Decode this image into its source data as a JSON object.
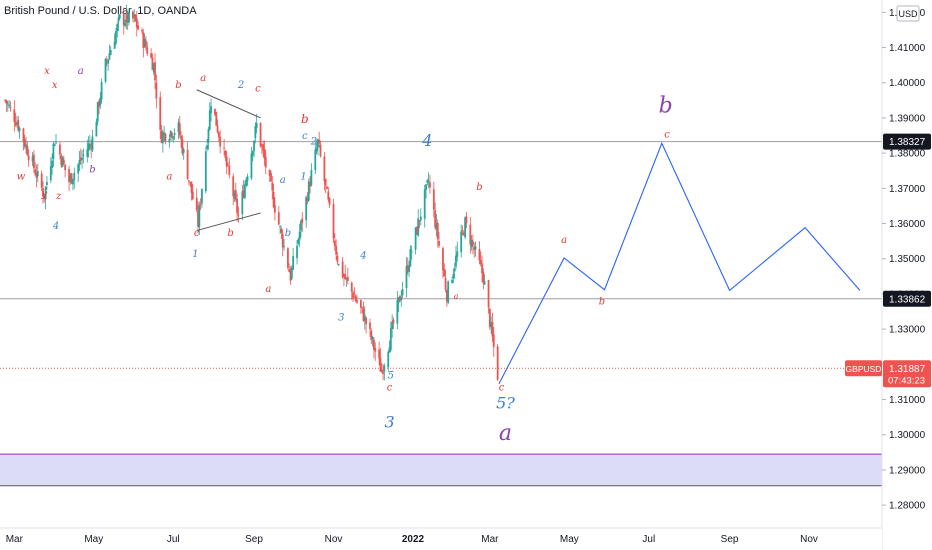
{
  "header": {
    "title": "British Pound / U.S. Dollar, 1D, OANDA",
    "currency": "USD"
  },
  "price_axis": {
    "labels": [
      "1.42000",
      "1.41000",
      "1.40000",
      "1.39000",
      "1.38000",
      "1.37000",
      "1.36000",
      "1.35000",
      "1.34000",
      "1.33000",
      "1.32000",
      "1.31000",
      "1.30000",
      "1.29000",
      "1.28000"
    ]
  },
  "badges": {
    "level1": "1.38327",
    "level2": "1.33862",
    "ticker": "GBPUSD",
    "price": "1.31887",
    "countdown": "07:43:23"
  },
  "time_axis": {
    "labels": [
      "Mar",
      "May",
      "Jul",
      "Sep",
      "Nov",
      "2022",
      "Mar",
      "May",
      "Jul",
      "Sep",
      "Nov"
    ]
  },
  "colors": {
    "up": "#26a69a",
    "down": "#ef5350",
    "red_label": "#e53935",
    "blue_label": "#3d7fcf",
    "purple_label": "#8e44ad",
    "projection": "#2962ff",
    "zone_fill": "#dcdcf6",
    "zone_border": "#9c27b0",
    "hline": "#9e9e9e",
    "badge_bg": "#131722",
    "price_badge_bg": "#ef5350"
  },
  "chart_data": {
    "type": "candlestick",
    "title": "British Pound / U.S. Dollar, 1D, OANDA",
    "ylim": [
      1.2735,
      1.4235
    ],
    "series": [
      {
        "name": "GBPUSD",
        "close_path": [
          [
            "2021-02-22",
            1.395
          ],
          [
            "2021-03-03",
            1.389
          ],
          [
            "2021-03-15",
            1.377
          ],
          [
            "2021-03-24",
            1.368
          ],
          [
            "2021-04-01",
            1.384
          ],
          [
            "2021-04-12",
            1.372
          ],
          [
            "2021-04-30",
            1.384
          ],
          [
            "2021-05-10",
            1.405
          ],
          [
            "2021-05-21",
            1.418
          ],
          [
            "2021-06-01",
            1.418
          ],
          [
            "2021-06-16",
            1.405
          ],
          [
            "2021-06-21",
            1.385
          ],
          [
            "2021-07-05",
            1.387
          ],
          [
            "2021-07-20",
            1.36
          ],
          [
            "2021-07-30",
            1.395
          ],
          [
            "2021-08-20",
            1.362
          ],
          [
            "2021-09-03",
            1.388
          ],
          [
            "2021-09-29",
            1.345
          ],
          [
            "2021-10-20",
            1.383
          ],
          [
            "2021-11-05",
            1.348
          ],
          [
            "2021-11-24",
            1.334
          ],
          [
            "2021-12-08",
            1.318
          ],
          [
            "2022-01-13",
            1.372
          ],
          [
            "2022-01-27",
            1.34
          ],
          [
            "2022-02-10",
            1.36
          ],
          [
            "2022-02-24",
            1.345
          ],
          [
            "2022-03-07",
            1.317
          ]
        ]
      },
      {
        "name": "projection",
        "points": [
          [
            "2022-03-08",
            1.3145
          ],
          [
            "2022-04-27",
            1.3502
          ],
          [
            "2022-05-28",
            1.3412
          ],
          [
            "2022-07-11",
            1.3828
          ],
          [
            "2022-09-01",
            1.341
          ],
          [
            "2022-10-29",
            1.3588
          ],
          [
            "2022-12-10",
            1.341
          ]
        ]
      }
    ],
    "horizontal_lines": [
      1.38327,
      1.33862
    ],
    "current_price": 1.31887,
    "zone": [
      1.2855,
      1.2945
    ],
    "triangle": [
      [
        [
          "2021-07-19",
          1.398
        ],
        [
          "2021-09-06",
          1.39
        ]
      ],
      [
        [
          "2021-07-19",
          1.358
        ],
        [
          "2021-09-06",
          1.363
        ]
      ]
    ],
    "wave_labels": [
      {
        "text": "x",
        "date": "2021-03-26",
        "price": 1.4025,
        "color": "red",
        "size": "s"
      },
      {
        "text": "a",
        "date": "2021-04-21",
        "price": 1.4025,
        "color": "purple",
        "size": "s"
      },
      {
        "text": "x",
        "date": "2021-04-01",
        "price": 1.3985,
        "color": "red",
        "size": "s"
      },
      {
        "text": "w",
        "date": "2021-03-06",
        "price": 1.3725,
        "color": "red",
        "size": "s"
      },
      {
        "text": "y",
        "date": "2021-03-24",
        "price": 1.3675,
        "color": "red",
        "size": "s"
      },
      {
        "text": "z",
        "date": "2021-04-04",
        "price": 1.367,
        "color": "red",
        "size": "s"
      },
      {
        "text": "4",
        "date": "2021-04-02",
        "price": 1.3585,
        "color": "blue",
        "size": "s"
      },
      {
        "text": "b",
        "date": "2021-04-30",
        "price": 1.3745,
        "color": "purple",
        "size": "s"
      },
      {
        "text": "a",
        "date": "2021-06-28",
        "price": 1.3725,
        "color": "red",
        "size": "s"
      },
      {
        "text": "b",
        "date": "2021-07-05",
        "price": 1.3985,
        "color": "red",
        "size": "s"
      },
      {
        "text": "a",
        "date": "2021-07-24",
        "price": 1.4005,
        "color": "red",
        "size": "s"
      },
      {
        "text": "2",
        "date": "2021-08-22",
        "price": 1.3985,
        "color": "blue",
        "size": "s"
      },
      {
        "text": "c",
        "date": "2021-09-04",
        "price": 1.3975,
        "color": "red",
        "size": "s"
      },
      {
        "text": "c",
        "date": "2021-07-19",
        "price": 1.3565,
        "color": "red",
        "size": "s"
      },
      {
        "text": "b",
        "date": "2021-08-14",
        "price": 1.3565,
        "color": "red",
        "size": "s"
      },
      {
        "text": "1",
        "date": "2021-07-18",
        "price": 1.3505,
        "color": "blue",
        "size": "s"
      },
      {
        "text": "a",
        "date": "2021-09-23",
        "price": 1.3715,
        "color": "blue",
        "size": "s"
      },
      {
        "text": "b",
        "date": "2021-09-27",
        "price": 1.3565,
        "color": "blue",
        "size": "s"
      },
      {
        "text": "c",
        "date": "2021-10-10",
        "price": 1.384,
        "color": "blue",
        "size": "s"
      },
      {
        "text": "b",
        "date": "2021-10-10",
        "price": 1.3885,
        "color": "red",
        "size": "m"
      },
      {
        "text": "2",
        "date": "2021-10-17",
        "price": 1.3825,
        "color": "blue",
        "size": "s"
      },
      {
        "text": "1",
        "date": "2021-10-09",
        "price": 1.3725,
        "color": "blue",
        "size": "s"
      },
      {
        "text": "a",
        "date": "2021-09-12",
        "price": 1.3405,
        "color": "red",
        "size": "s"
      },
      {
        "text": "4",
        "date": "2021-11-24",
        "price": 1.35,
        "color": "blue",
        "size": "s"
      },
      {
        "text": "3",
        "date": "2021-11-07",
        "price": 1.3325,
        "color": "blue",
        "size": "s"
      },
      {
        "text": "4",
        "date": "2022-01-12",
        "price": 1.382,
        "color": "blue",
        "size": "l"
      },
      {
        "text": "5",
        "date": "2021-12-15",
        "price": 1.316,
        "color": "blue",
        "size": "s"
      },
      {
        "text": "c",
        "date": "2021-12-14",
        "price": 1.3125,
        "color": "red",
        "size": "s"
      },
      {
        "text": "3",
        "date": "2021-12-14",
        "price": 1.302,
        "color": "blue",
        "size": "l"
      },
      {
        "text": "b",
        "date": "2022-02-21",
        "price": 1.3695,
        "color": "red",
        "size": "s"
      },
      {
        "text": "a",
        "date": "2022-02-03",
        "price": 1.3385,
        "color": "red",
        "size": "xs"
      },
      {
        "text": "c",
        "date": "2022-03-10",
        "price": 1.3125,
        "color": "red",
        "size": "s"
      },
      {
        "text": "5?",
        "date": "2022-03-13",
        "price": 1.3075,
        "color": "blue",
        "size": "l"
      },
      {
        "text": "a",
        "date": "2022-03-13",
        "price": 1.2985,
        "color": "purple",
        "size": "xl"
      },
      {
        "text": "a",
        "date": "2022-04-27",
        "price": 1.3545,
        "color": "red",
        "size": "s"
      },
      {
        "text": "b",
        "date": "2022-05-26",
        "price": 1.337,
        "color": "red",
        "size": "s"
      },
      {
        "text": "b",
        "date": "2022-07-14",
        "price": 1.3915,
        "color": "purple",
        "size": "xl"
      },
      {
        "text": "c",
        "date": "2022-07-15",
        "price": 1.3845,
        "color": "red",
        "size": "s"
      }
    ]
  }
}
